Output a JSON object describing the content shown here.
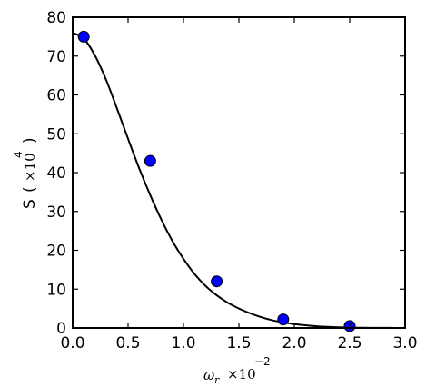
{
  "chart_data": {
    "type": "scatter",
    "title": "",
    "xlabel": {
      "symbol": "ω",
      "subscript": "r",
      "multiplier": "×10",
      "exponent": "−2"
    },
    "ylabel": {
      "text": "S",
      "open_paren": "(",
      "multiplier": "×10",
      "exponent": "4",
      "close_paren": ")"
    },
    "xlim": [
      0.0,
      3.0
    ],
    "ylim": [
      0,
      80
    ],
    "xticks": [
      "0.0",
      "0.5",
      "1.0",
      "1.5",
      "2.0",
      "2.5",
      "3.0"
    ],
    "yticks": [
      "0",
      "10",
      "20",
      "30",
      "40",
      "50",
      "60",
      "70",
      "80"
    ],
    "series": [
      {
        "kind": "points",
        "color": "#0000ff",
        "x": [
          0.1,
          0.7,
          1.3,
          1.9,
          2.5
        ],
        "y": [
          75,
          43,
          12,
          2.2,
          0.5
        ]
      },
      {
        "kind": "fit-line",
        "color": "#000000",
        "x": [
          0.0,
          0.1,
          0.2,
          0.3,
          0.4,
          0.5,
          0.6,
          0.7,
          0.8,
          0.9,
          1.0,
          1.1,
          1.2,
          1.3,
          1.4,
          1.5,
          1.6,
          1.7,
          1.8,
          1.9,
          2.0,
          2.1,
          2.2,
          2.3,
          2.4,
          2.5,
          2.6,
          2.7,
          2.8,
          2.9,
          3.0
        ],
        "y": [
          76.0,
          74.5,
          70.2,
          64.0,
          56.5,
          48.7,
          41.1,
          34.2,
          27.9,
          22.4,
          17.8,
          13.9,
          10.8,
          8.4,
          6.5,
          5.0,
          3.8,
          2.8,
          2.0,
          1.45,
          1.0,
          0.7,
          0.45,
          0.28,
          0.17,
          0.1,
          0.06,
          0.03,
          0.02,
          0.01,
          0.0
        ]
      }
    ],
    "grid": false,
    "legend": "none"
  }
}
